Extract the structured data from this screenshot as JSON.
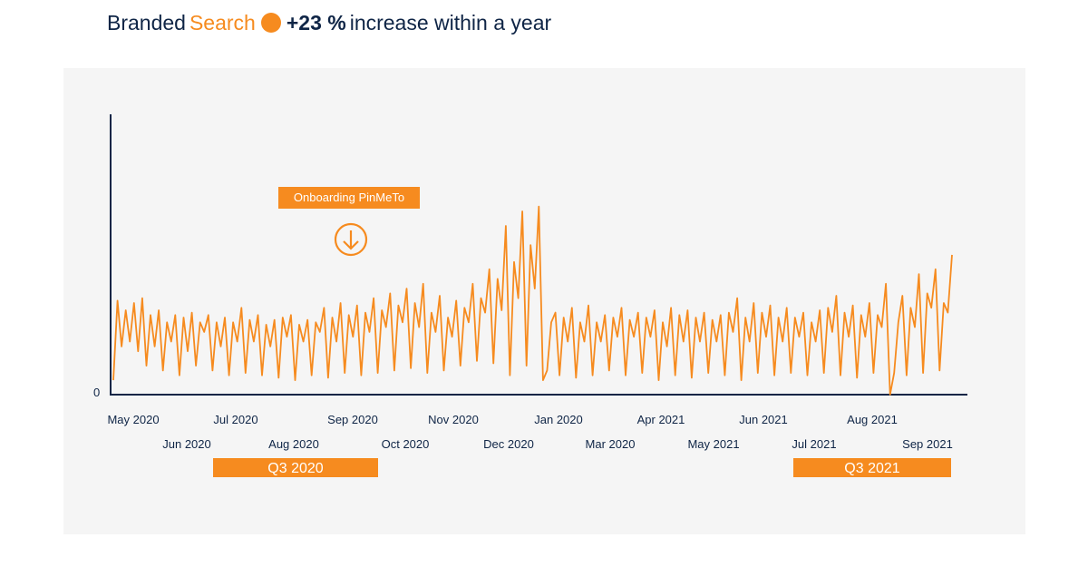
{
  "title": {
    "prefix": "Branded ",
    "accent": "Search",
    "bold": "+23 %",
    "suffix": " increase within a year"
  },
  "colors": {
    "accent": "#f68b1f",
    "navy": "#0f2546",
    "panel": "#f5f5f5"
  },
  "chart_data": {
    "type": "line",
    "title": "Branded Search +23 % increase within a year",
    "xlabel": "",
    "ylabel": "",
    "y_tick_labels": [
      "0"
    ],
    "ylim": [
      0,
      100
    ],
    "x_tick_labels": [
      "May 2020",
      "Jun 2020",
      "Jul 2020",
      "Aug 2020",
      "Sep 2020",
      "Oct 2020",
      "Nov 2020",
      "Dec 2020",
      "Jan 2020",
      "Mar 2020",
      "Apr 2021",
      "May 2021",
      "Jun 2021",
      "Jul 2021",
      "Aug 2021",
      "Sep 2021"
    ],
    "annotation": "Onboarding PinMeTo",
    "quarters": [
      "Q3 2020",
      "Q3 2021"
    ],
    "series": [
      {
        "name": "Branded Search",
        "values": [
          6,
          39,
          20,
          35,
          22,
          38,
          18,
          40,
          12,
          33,
          20,
          35,
          10,
          30,
          22,
          33,
          8,
          32,
          18,
          34,
          12,
          30,
          26,
          33,
          10,
          30,
          20,
          32,
          8,
          30,
          22,
          36,
          9,
          31,
          22,
          33,
          8,
          29,
          20,
          31,
          7,
          32,
          24,
          33,
          6,
          29,
          22,
          31,
          8,
          30,
          26,
          36,
          7,
          32,
          22,
          38,
          9,
          33,
          24,
          37,
          8,
          34,
          26,
          40,
          9,
          35,
          28,
          42,
          10,
          37,
          30,
          44,
          11,
          38,
          28,
          46,
          9,
          34,
          26,
          41,
          10,
          32,
          24,
          39,
          12,
          36,
          30,
          46,
          14,
          40,
          34,
          52,
          13,
          48,
          35,
          70,
          8,
          55,
          40,
          76,
          12,
          62,
          44,
          78,
          6,
          10,
          30,
          34,
          8,
          32,
          22,
          36,
          7,
          30,
          22,
          37,
          8,
          30,
          22,
          33,
          10,
          32,
          24,
          36,
          8,
          31,
          24,
          34,
          9,
          32,
          24,
          35,
          6,
          30,
          20,
          36,
          8,
          33,
          22,
          35,
          7,
          32,
          22,
          34,
          9,
          31,
          22,
          33,
          8,
          34,
          26,
          40,
          6,
          32,
          22,
          38,
          9,
          34,
          24,
          37,
          8,
          32,
          22,
          36,
          9,
          32,
          24,
          34,
          8,
          30,
          22,
          35,
          9,
          36,
          26,
          41,
          8,
          34,
          24,
          37,
          7,
          33,
          24,
          38,
          9,
          33,
          28,
          46,
          0,
          9,
          30,
          41,
          8,
          36,
          28,
          50,
          9,
          42,
          36,
          52,
          10,
          38,
          34,
          58
        ]
      }
    ]
  }
}
